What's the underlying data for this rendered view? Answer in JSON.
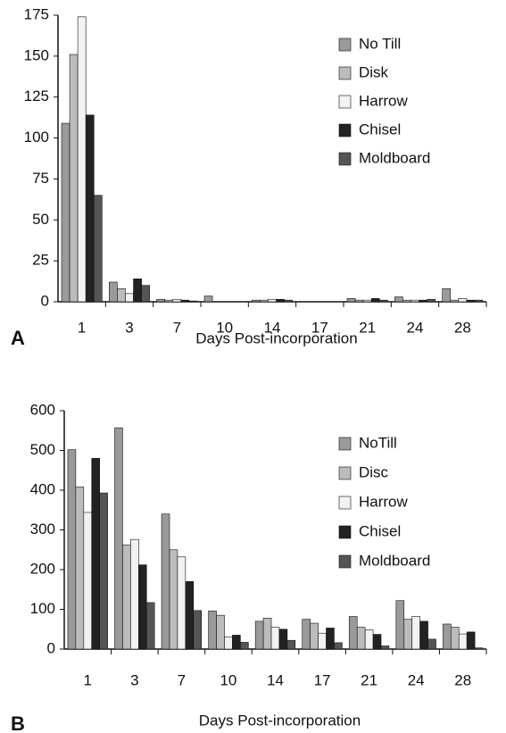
{
  "chart_data": [
    {
      "type": "bar",
      "panel": "A",
      "x_label": "Days Post-incorporation",
      "categories": [
        "1",
        "3",
        "7",
        "10",
        "14",
        "17",
        "21",
        "24",
        "28"
      ],
      "ylim": [
        0,
        175
      ],
      "yticks": [
        0,
        25,
        50,
        75,
        100,
        125,
        150,
        175
      ],
      "series": [
        {
          "name": "No Till",
          "color": "#9a9a9a",
          "values": [
            109,
            12,
            1.5,
            3.5,
            1,
            0,
            2,
            3,
            8
          ]
        },
        {
          "name": "Disk",
          "color": "#bcbcbc",
          "values": [
            151,
            8,
            1,
            0,
            1,
            0,
            1,
            1,
            1
          ]
        },
        {
          "name": "Harrow",
          "color": "#f2f2f2",
          "values": [
            174,
            5,
            1.5,
            0,
            1.5,
            0,
            1,
            1,
            2
          ]
        },
        {
          "name": "Chisel",
          "color": "#222222",
          "values": [
            114,
            14,
            1,
            0,
            1.5,
            0,
            2,
            1,
            1
          ]
        },
        {
          "name": "Moldboard",
          "color": "#555555",
          "values": [
            65,
            10,
            0.5,
            0,
            1,
            0,
            1,
            1.5,
            1
          ]
        }
      ]
    },
    {
      "type": "bar",
      "panel": "B",
      "x_label": "Days Post-incorporation",
      "categories": [
        "1",
        "3",
        "7",
        "10",
        "14",
        "17",
        "21",
        "24",
        "28"
      ],
      "ylim": [
        0,
        600
      ],
      "yticks": [
        0,
        100,
        200,
        300,
        400,
        500,
        600
      ],
      "series": [
        {
          "name": "NoTill",
          "color": "#9a9a9a",
          "values": [
            502,
            557,
            340,
            96,
            70,
            75,
            82,
            122,
            63
          ]
        },
        {
          "name": "Disc",
          "color": "#bcbcbc",
          "values": [
            408,
            262,
            250,
            85,
            78,
            65,
            55,
            75,
            55
          ]
        },
        {
          "name": "Harrow",
          "color": "#f2f2f2",
          "values": [
            344,
            276,
            232,
            31,
            55,
            40,
            48,
            82,
            38
          ]
        },
        {
          "name": "Chisel",
          "color": "#222222",
          "values": [
            480,
            212,
            170,
            35,
            50,
            53,
            37,
            70,
            43
          ]
        },
        {
          "name": "Moldboard",
          "color": "#555555",
          "values": [
            393,
            117,
            97,
            17,
            22,
            16,
            8,
            25,
            3
          ]
        }
      ]
    }
  ]
}
